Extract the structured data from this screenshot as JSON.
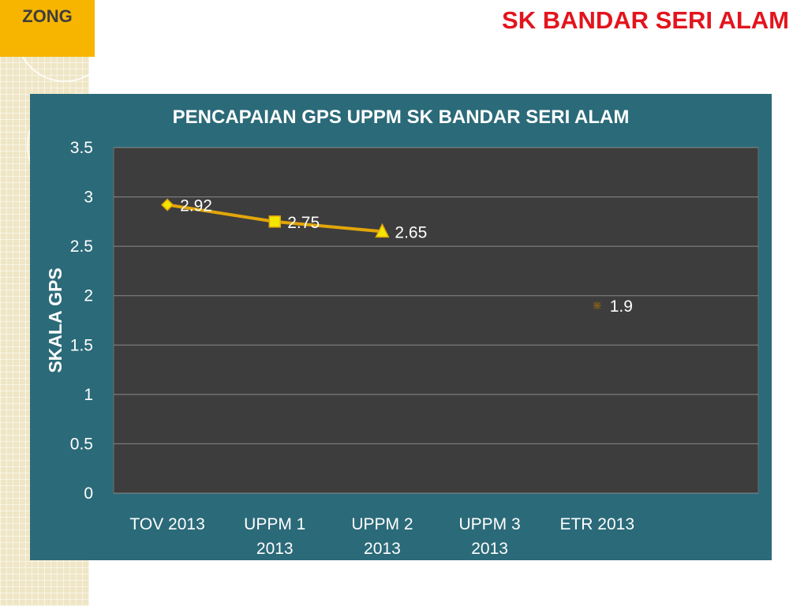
{
  "zone_badge": "ZONG",
  "school_title": "SK BANDAR SERI ALAM",
  "chart_data": {
    "type": "line",
    "title": "PENCAPAIAN GPS UPPM SK BANDAR SERI ALAM",
    "xlabel": "",
    "ylabel": "SKALA GPS",
    "ylim": [
      0,
      3.5
    ],
    "yticks": [
      "0",
      "0.5",
      "1",
      "1.5",
      "2",
      "2.5",
      "3",
      "3.5"
    ],
    "categories": [
      [
        "TOV 2013"
      ],
      [
        "UPPM 1",
        "2013"
      ],
      [
        "UPPM 2",
        "2013"
      ],
      [
        "UPPM 3",
        "2013"
      ],
      [
        "ETR 2013"
      ]
    ],
    "series": [
      {
        "points": [
          {
            "category_index": 0,
            "value": 2.92,
            "label": "2.92",
            "marker": "diamond"
          },
          {
            "category_index": 1,
            "value": 2.75,
            "label": "2.75",
            "marker": "square"
          },
          {
            "category_index": 2,
            "value": 2.65,
            "label": "2.65",
            "marker": "triangle"
          }
        ],
        "color": "#e2a60a",
        "marker_fill": "#f3e600"
      },
      {
        "points": [
          {
            "category_index": 4,
            "value": 1.9,
            "label": "1.9",
            "marker": "star"
          }
        ],
        "color": "#7a5b1e",
        "marker_fill": "#7a5b1e"
      }
    ],
    "grid": true,
    "legend": "none",
    "colors": {
      "panel_bg": "#2b6a79",
      "plot_bg": "#3d3d3d",
      "grid": "#8a8a8a",
      "text": "#ffffff"
    }
  }
}
